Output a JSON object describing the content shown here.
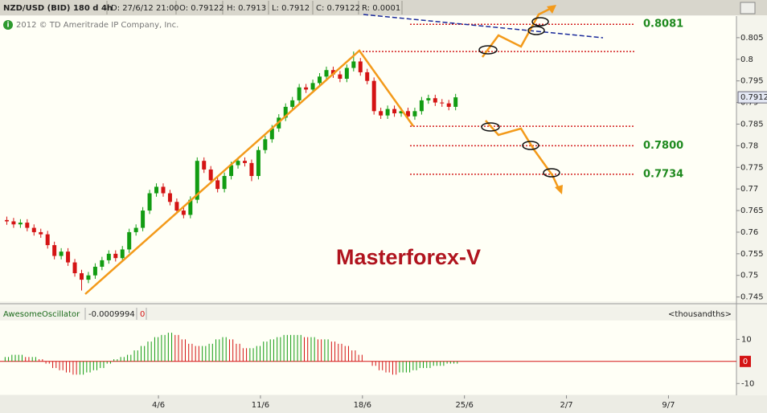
{
  "header": {
    "symbol": "NZD/USD (BID) 180 d 4h",
    "date": "D: 27/6/12 21:00",
    "open": "O: 0.79122",
    "high": "H: 0.7913",
    "low": "L: 0.7912",
    "close": "C: 0.79122",
    "range": "R: 0.0001",
    "copyright": "2012 © TD Ameritrade IP Company, Inc.",
    "watermark": "Masterforex-V"
  },
  "chart_data": [
    {
      "type": "candlestick",
      "x": [
        0,
        1,
        2,
        3,
        4,
        5,
        6,
        7,
        8,
        9,
        10,
        11,
        12,
        13,
        14,
        15,
        16,
        17,
        18,
        19,
        20,
        21,
        22,
        23,
        24,
        25,
        26,
        27,
        28,
        29,
        30,
        31,
        32,
        33,
        34,
        35,
        36,
        37,
        38,
        39,
        40,
        41,
        42,
        43,
        44,
        45,
        46,
        47,
        48,
        49,
        50,
        51,
        52,
        53,
        54,
        55,
        56,
        57,
        58,
        59,
        60,
        61,
        62,
        63,
        64,
        65,
        66
      ],
      "open": [
        0.7628,
        0.7625,
        0.7618,
        0.7622,
        0.761,
        0.76,
        0.7595,
        0.757,
        0.7545,
        0.7555,
        0.753,
        0.7505,
        0.749,
        0.75,
        0.752,
        0.7535,
        0.755,
        0.754,
        0.756,
        0.76,
        0.761,
        0.765,
        0.769,
        0.7705,
        0.769,
        0.767,
        0.765,
        0.764,
        0.7675,
        0.7765,
        0.7745,
        0.772,
        0.77,
        0.773,
        0.7755,
        0.7765,
        0.776,
        0.773,
        0.779,
        0.7815,
        0.784,
        0.7865,
        0.789,
        0.7905,
        0.7935,
        0.793,
        0.7945,
        0.796,
        0.7975,
        0.7965,
        0.7955,
        0.798,
        0.7995,
        0.797,
        0.795,
        0.788,
        0.787,
        0.7885,
        0.7875,
        0.788,
        0.7868,
        0.788,
        0.7905,
        0.791,
        0.79,
        0.7898,
        0.789
      ],
      "high": [
        0.7636,
        0.7633,
        0.763,
        0.763,
        0.7618,
        0.7608,
        0.7603,
        0.7578,
        0.7563,
        0.7563,
        0.7538,
        0.7513,
        0.7508,
        0.7528,
        0.7543,
        0.7558,
        0.7558,
        0.7568,
        0.7608,
        0.7618,
        0.7658,
        0.7698,
        0.7713,
        0.7713,
        0.7698,
        0.7678,
        0.7658,
        0.7683,
        0.7773,
        0.7773,
        0.7753,
        0.7728,
        0.7738,
        0.7763,
        0.7773,
        0.7773,
        0.7768,
        0.7798,
        0.7823,
        0.7848,
        0.7873,
        0.7898,
        0.7913,
        0.7943,
        0.7943,
        0.7953,
        0.7968,
        0.7983,
        0.7983,
        0.7973,
        0.7988,
        0.8018,
        0.8003,
        0.7978,
        0.7958,
        0.7888,
        0.7893,
        0.7893,
        0.7888,
        0.7888,
        0.7888,
        0.7913,
        0.7918,
        0.7918,
        0.7908,
        0.7906,
        0.792
      ],
      "low": [
        0.7617,
        0.761,
        0.761,
        0.7602,
        0.7592,
        0.7587,
        0.7562,
        0.7537,
        0.7537,
        0.7522,
        0.7497,
        0.7465,
        0.7482,
        0.7492,
        0.7512,
        0.7527,
        0.7532,
        0.7532,
        0.7552,
        0.7592,
        0.7602,
        0.7642,
        0.7682,
        0.7682,
        0.7662,
        0.7642,
        0.7632,
        0.7632,
        0.7667,
        0.7737,
        0.7712,
        0.7692,
        0.7692,
        0.7722,
        0.7747,
        0.7752,
        0.7718,
        0.7722,
        0.7782,
        0.7807,
        0.7832,
        0.7857,
        0.7882,
        0.7897,
        0.7922,
        0.7922,
        0.7937,
        0.7952,
        0.7957,
        0.7947,
        0.7947,
        0.7972,
        0.7962,
        0.7942,
        0.7872,
        0.7862,
        0.7862,
        0.7867,
        0.7867,
        0.786,
        0.786,
        0.7872,
        0.7897,
        0.7892,
        0.789,
        0.7882,
        0.7882
      ],
      "close": [
        0.7625,
        0.7618,
        0.7622,
        0.761,
        0.76,
        0.7595,
        0.757,
        0.7545,
        0.7555,
        0.753,
        0.7505,
        0.749,
        0.75,
        0.752,
        0.7535,
        0.755,
        0.754,
        0.756,
        0.76,
        0.761,
        0.765,
        0.769,
        0.7705,
        0.769,
        0.767,
        0.765,
        0.764,
        0.7675,
        0.7765,
        0.7745,
        0.772,
        0.77,
        0.773,
        0.7755,
        0.7765,
        0.776,
        0.773,
        0.779,
        0.7815,
        0.784,
        0.7865,
        0.789,
        0.7905,
        0.7935,
        0.793,
        0.7945,
        0.796,
        0.7975,
        0.7965,
        0.7955,
        0.798,
        0.7995,
        0.797,
        0.795,
        0.788,
        0.787,
        0.7885,
        0.7875,
        0.788,
        0.7868,
        0.788,
        0.7905,
        0.791,
        0.79,
        0.7898,
        0.789,
        0.7912
      ],
      "up_color": "#129c12",
      "down_color": "#d41414",
      "xlim": [
        -1,
        107.3
      ],
      "ylim": [
        0.744,
        0.81
      ],
      "yticks": [
        0.745,
        0.75,
        0.755,
        0.76,
        0.765,
        0.77,
        0.775,
        0.78,
        0.785,
        0.79,
        0.795,
        0.8,
        0.805
      ],
      "last": {
        "value": 0.7912,
        "label": "0.7912"
      },
      "levels": [
        {
          "value": 0.8081,
          "label": "0.8081"
        },
        {
          "value": 0.8018
        },
        {
          "value": 0.7845
        },
        {
          "value": 0.78,
          "label": "0.7800"
        },
        {
          "value": 0.7734,
          "label": "0.7734"
        }
      ],
      "level_color": "#d42020"
    },
    {
      "type": "bar",
      "name": "AwesomeOscillator",
      "value_text": "-0.0009994",
      "param": "0",
      "units": "<thousandths>",
      "x": [
        0,
        1,
        2,
        3,
        4,
        5,
        6,
        7,
        8,
        9,
        10,
        11,
        12,
        13,
        14,
        15,
        16,
        17,
        18,
        19,
        20,
        21,
        22,
        23,
        24,
        25,
        26,
        27,
        28,
        29,
        30,
        31,
        32,
        33,
        34,
        35,
        36,
        37,
        38,
        39,
        40,
        41,
        42,
        43,
        44,
        45,
        46,
        47,
        48,
        49,
        50,
        51,
        52,
        53,
        54,
        55,
        56,
        57,
        58,
        59,
        60,
        61,
        62,
        63,
        64,
        65,
        66
      ],
      "values": [
        2,
        3,
        3,
        2,
        2,
        1,
        -1,
        -3,
        -4,
        -5,
        -6,
        -6,
        -5,
        -4,
        -3,
        -1,
        1,
        2,
        3,
        5,
        7,
        9,
        11,
        12,
        13,
        12,
        10,
        8,
        7,
        7,
        8,
        10,
        11,
        10,
        8,
        6,
        6,
        7,
        9,
        10,
        11,
        12,
        12,
        12,
        11,
        11,
        10,
        10,
        9,
        8,
        7,
        5,
        3,
        0,
        -2,
        -4,
        -5,
        -6,
        -5,
        -5,
        -4,
        -3,
        -3,
        -2,
        -2,
        -1,
        -1
      ],
      "up_color": "#129c12",
      "down_color": "#d41414",
      "xlim": [
        -1,
        107.3
      ],
      "ylim": [
        -15,
        18.5
      ],
      "yticks": [
        -10,
        0,
        10
      ],
      "xticks": [
        {
          "value": 22.3,
          "label": "4/6"
        },
        {
          "value": 37.3,
          "label": "11/6"
        },
        {
          "value": 52.3,
          "label": "18/6"
        },
        {
          "value": 67.3,
          "label": "25/6"
        },
        {
          "value": 82.3,
          "label": "2/7"
        },
        {
          "value": 97.3,
          "label": "9/7"
        }
      ]
    }
  ]
}
